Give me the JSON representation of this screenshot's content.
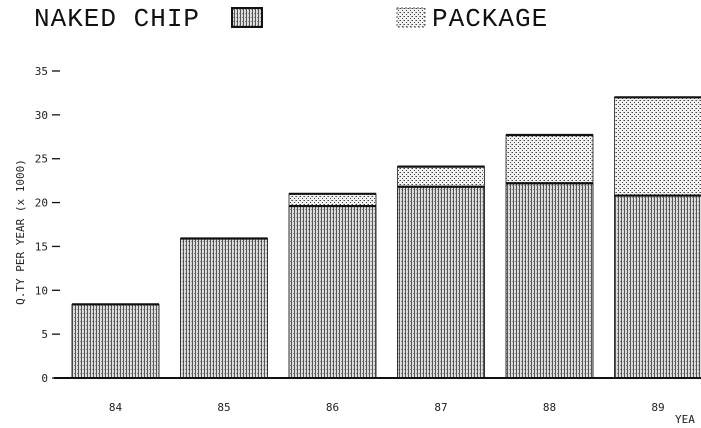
{
  "chart_data": {
    "type": "bar",
    "stacked": true,
    "categories": [
      "84",
      "85",
      "86",
      "87",
      "88",
      "89"
    ],
    "series": [
      {
        "name": "NAKED CHIP",
        "values": [
          8.4,
          15.9,
          19.6,
          21.8,
          22.2,
          20.8
        ]
      },
      {
        "name": "PACKAGE",
        "values": [
          0,
          0,
          1.4,
          2.3,
          5.5,
          11.2
        ]
      }
    ],
    "title": "",
    "xlabel": "YEA",
    "ylabel": "Q.TY PER YEAR (x 1000)",
    "yticks": [
      "35",
      "30",
      "25",
      "20",
      "15",
      "10",
      "5",
      "0"
    ],
    "ytick_values": [
      35,
      30,
      25,
      20,
      15,
      10,
      5,
      0
    ],
    "ylim": [
      0,
      35
    ],
    "grid": false,
    "legend_position": "top"
  }
}
